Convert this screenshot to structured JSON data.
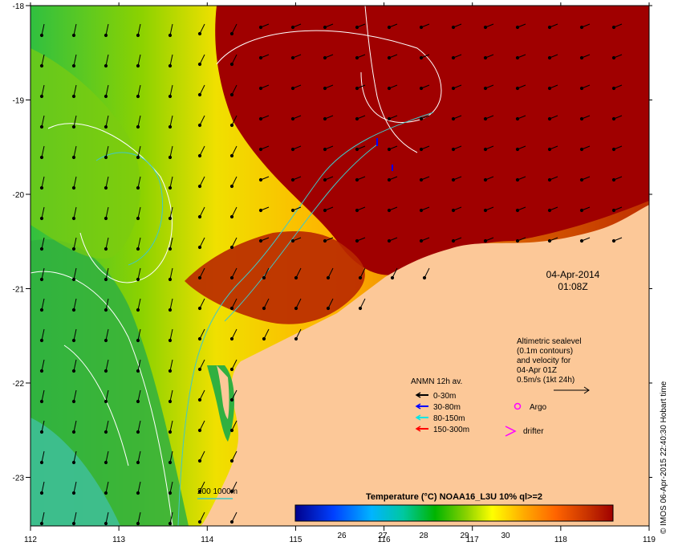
{
  "map": {
    "date_label": "04-Apr-2014",
    "time_label": "01:08Z",
    "credit": "© IMOS 06-Apr-2015 22:40:30 Hobart time",
    "x_ticks": [
      "112",
      "113",
      "114",
      "115",
      "116",
      "117",
      "118",
      "119"
    ],
    "y_ticks": [
      "-18",
      "-19",
      "-20",
      "-21",
      "-22",
      "-23"
    ]
  },
  "altimetric": {
    "line1": "Altimetric sealevel",
    "line2": "(0.1m contours)",
    "line3": "and velocity for",
    "line4": "04-Apr 01Z",
    "line5": "0.5m/s (1kt 24h)"
  },
  "anmn": {
    "title": "ANMN 12h av.",
    "items": [
      {
        "label": "0-30m",
        "color": "#000000"
      },
      {
        "label": "30-80m",
        "color": "#0000ff"
      },
      {
        "label": "80-150m",
        "color": "#00e5e5"
      },
      {
        "label": "150-300m",
        "color": "#ff0000"
      }
    ]
  },
  "markers": {
    "argo_label": "Argo",
    "drifter_label": "drifter",
    "argo_color": "#ff00ff",
    "drifter_color": "#ff00ff"
  },
  "isobath": {
    "label": "200  1000m",
    "color": "#40c8c8"
  },
  "colorbar": {
    "title": "Temperature (°C) NOAA16_L3U 10% ql>=2",
    "ticks": [
      "26",
      "27",
      "28",
      "29",
      "30"
    ]
  },
  "colors": {
    "land": "#fcc898",
    "warm": "#a00000"
  }
}
